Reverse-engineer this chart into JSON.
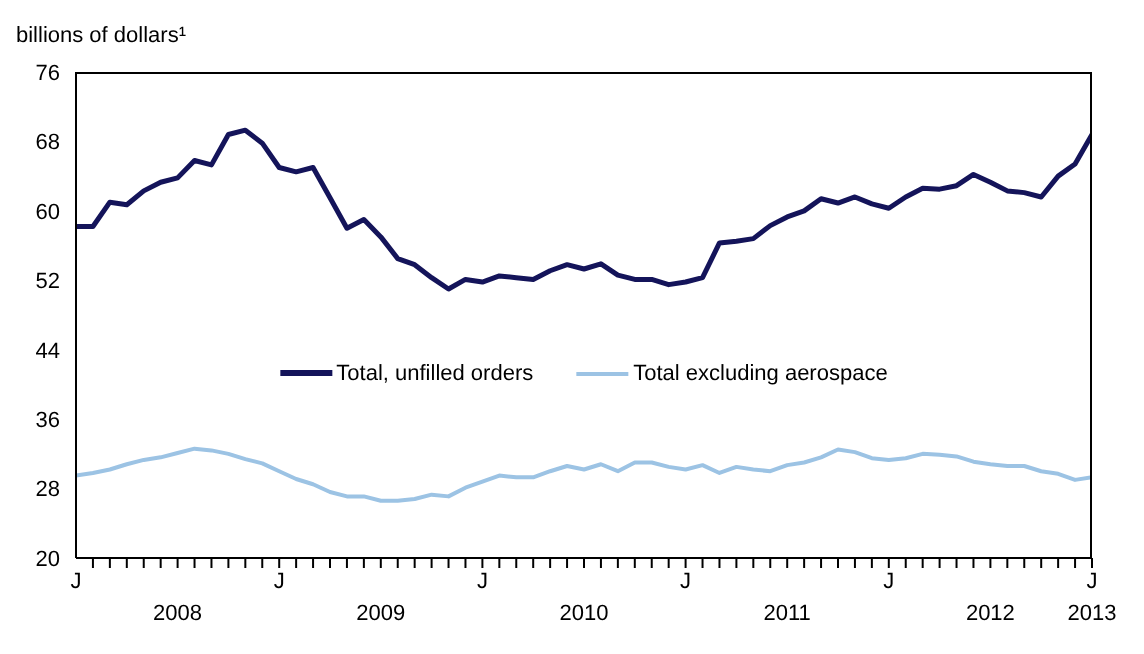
{
  "chart_data": {
    "type": "line",
    "ylabel": "billions of dollars¹",
    "categories": [
      "J",
      null,
      null,
      null,
      null,
      null,
      null,
      null,
      null,
      null,
      null,
      null,
      "J",
      null,
      null,
      null,
      null,
      null,
      null,
      null,
      null,
      null,
      null,
      null,
      "J",
      null,
      null,
      null,
      null,
      null,
      null,
      null,
      null,
      null,
      null,
      null,
      "J",
      null,
      null,
      null,
      null,
      null,
      null,
      null,
      null,
      null,
      null,
      null,
      "J",
      null,
      null,
      null,
      null,
      null,
      null,
      null,
      null,
      null,
      null,
      null,
      "J"
    ],
    "series": [
      {
        "name": "Total, unfilled orders",
        "color": "#14145a",
        "values": [
          58.2,
          58.2,
          61,
          60.7,
          62.3,
          63.3,
          63.8,
          65.8,
          65.3,
          68.8,
          69.3,
          67.8,
          65,
          64.5,
          65,
          61.5,
          58,
          59,
          57,
          54.5,
          53.8,
          52.3,
          51,
          52.1,
          51.8,
          52.5,
          52.3,
          52.1,
          53.1,
          53.8,
          53.3,
          53.9,
          52.6,
          52.1,
          52.1,
          51.5,
          51.8,
          52.3,
          56.3,
          56.5,
          56.8,
          58.3,
          59.3,
          60,
          61.4,
          60.9,
          61.6,
          60.8,
          60.3,
          61.6,
          62.6,
          62.5,
          62.9,
          64.2,
          63.3,
          62.3,
          62.1,
          61.6,
          64,
          65.4,
          68.8
        ]
      },
      {
        "name": "Total excluding aerospace",
        "color": "#9cc3e4",
        "values": [
          29.5,
          29.8,
          30.2,
          30.8,
          31.3,
          31.6,
          32.1,
          32.6,
          32.4,
          32,
          31.4,
          30.9,
          30,
          29.1,
          28.5,
          27.6,
          27.1,
          27.1,
          26.6,
          26.6,
          26.8,
          27.3,
          27.1,
          28.1,
          28.8,
          29.5,
          29.3,
          29.3,
          30,
          30.6,
          30.2,
          30.8,
          30,
          31,
          31,
          30.5,
          30.2,
          30.7,
          29.8,
          30.5,
          30.2,
          30,
          30.7,
          31,
          31.6,
          32.5,
          32.2,
          31.5,
          31.3,
          31.5,
          32,
          31.9,
          31.7,
          31.1,
          30.8,
          30.6,
          30.6,
          30,
          29.7,
          29,
          29.3
        ]
      }
    ],
    "ylim": [
      20,
      76
    ],
    "yticks": [
      20,
      28,
      36,
      44,
      52,
      60,
      68,
      76
    ],
    "annotations": [
      "2008",
      "2009",
      "2010",
      "2011",
      "2012",
      "2013"
    ],
    "legend": "center",
    "marker": "none",
    "line_style": "solid"
  }
}
